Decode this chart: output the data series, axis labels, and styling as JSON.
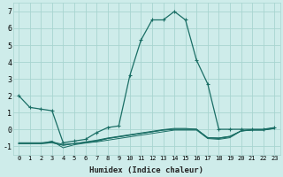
{
  "xlabel": "Humidex (Indice chaleur)",
  "background_color": "#ceecea",
  "grid_color": "#a8d5d0",
  "line_color": "#1a6e65",
  "xlim": [
    -0.5,
    23.5
  ],
  "ylim": [
    -1.5,
    7.5
  ],
  "xticks": [
    0,
    1,
    2,
    3,
    4,
    5,
    6,
    7,
    8,
    9,
    10,
    11,
    12,
    13,
    14,
    15,
    16,
    17,
    18,
    19,
    20,
    21,
    22,
    23
  ],
  "yticks": [
    -1,
    0,
    1,
    2,
    3,
    4,
    5,
    6,
    7
  ],
  "main_series": [
    2.0,
    1.3,
    1.2,
    1.1,
    -0.8,
    -0.7,
    -0.6,
    -0.2,
    0.1,
    0.2,
    3.2,
    5.3,
    6.5,
    6.5,
    7.0,
    6.5,
    4.1,
    2.7,
    0.0,
    0.0,
    0.0,
    0.0,
    0.0,
    0.1
  ],
  "flat_series": [
    [
      -0.8,
      -0.8,
      -0.8,
      -0.75,
      -0.9,
      -0.85,
      -0.8,
      -0.75,
      -0.65,
      -0.55,
      -0.45,
      -0.35,
      -0.25,
      -0.15,
      -0.05,
      -0.05,
      -0.05,
      -0.55,
      -0.6,
      -0.5,
      -0.1,
      -0.05,
      -0.05,
      0.05
    ],
    [
      -0.85,
      -0.85,
      -0.85,
      -0.8,
      -0.95,
      -0.85,
      -0.78,
      -0.68,
      -0.55,
      -0.45,
      -0.35,
      -0.25,
      -0.15,
      -0.05,
      0.0,
      0.0,
      0.0,
      -0.5,
      -0.55,
      -0.45,
      -0.1,
      -0.05,
      -0.05,
      0.05
    ],
    [
      -0.85,
      -0.85,
      -0.85,
      -0.8,
      -0.95,
      -0.85,
      -0.75,
      -0.65,
      -0.52,
      -0.42,
      -0.32,
      -0.22,
      -0.12,
      -0.02,
      0.05,
      0.05,
      0.0,
      -0.5,
      -0.52,
      -0.42,
      -0.1,
      -0.02,
      -0.02,
      0.08
    ],
    [
      -0.85,
      -0.85,
      -0.85,
      -0.7,
      -1.1,
      -0.92,
      -0.82,
      -0.72,
      -0.55,
      -0.45,
      -0.35,
      -0.25,
      -0.15,
      -0.05,
      0.0,
      0.0,
      0.0,
      -0.52,
      -0.52,
      -0.42,
      -0.1,
      -0.02,
      -0.02,
      0.08
    ]
  ],
  "xlabel_fontsize": 6.5,
  "tick_fontsize_x": 5.0,
  "tick_fontsize_y": 6.0
}
